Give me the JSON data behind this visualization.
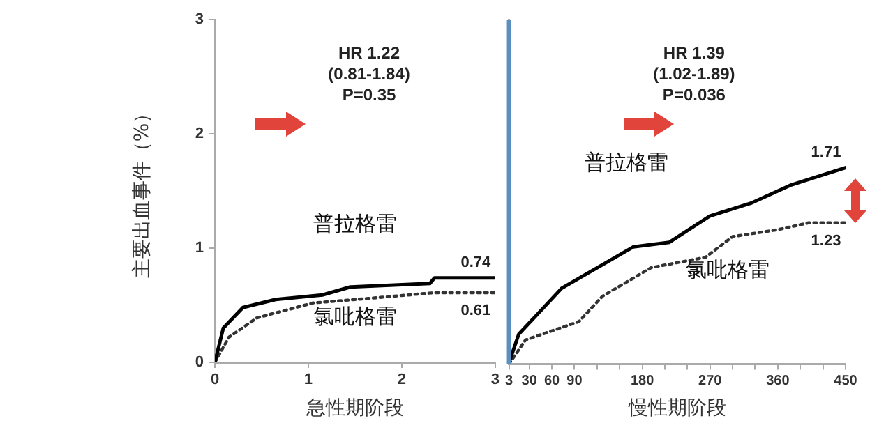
{
  "chart_data": [
    {
      "type": "line",
      "xlabel": "急性期阶段",
      "ylabel": "主要出血事件（%）",
      "xlim": [
        0,
        3
      ],
      "xticks": [
        0,
        1,
        2,
        3
      ],
      "ylim": [
        0,
        3
      ],
      "yticks": [
        0,
        1,
        2,
        3
      ],
      "grid": false,
      "legend": false,
      "marker": "none",
      "annotations": [
        "HR 1.22",
        "(0.81-1.84)",
        "P=0.35"
      ],
      "series": [
        {
          "name": "普拉格雷",
          "color": "#000000",
          "line_style": "solid",
          "x": [
            0,
            0.09,
            0.3,
            0.65,
            1.15,
            1.45,
            2.3,
            2.35,
            3
          ],
          "values": [
            0,
            0.3,
            0.48,
            0.55,
            0.59,
            0.66,
            0.69,
            0.74,
            0.74
          ],
          "value_labels": [
            null,
            null,
            null,
            null,
            null,
            null,
            null,
            null,
            "0.74"
          ]
        },
        {
          "name": "氯吡格雷",
          "color": "#333333",
          "line_style": "dotted",
          "x": [
            0,
            0.15,
            0.45,
            1.05,
            1.65,
            2.35,
            3
          ],
          "values": [
            0,
            0.22,
            0.39,
            0.52,
            0.56,
            0.61,
            0.61
          ],
          "value_labels": [
            null,
            null,
            null,
            null,
            null,
            null,
            "0.61"
          ]
        }
      ]
    },
    {
      "type": "line",
      "xlabel": "慢性期阶段",
      "xlim": [
        3,
        450
      ],
      "xticks": [
        3,
        30,
        60,
        90,
        {
          "value": 120,
          "label": null
        },
        {
          "value": 150,
          "label": null
        },
        180,
        {
          "value": 210,
          "label": null
        },
        {
          "value": 240,
          "label": null
        },
        270,
        {
          "value": 300,
          "label": null
        },
        {
          "value": 330,
          "label": null
        },
        360,
        {
          "value": 390,
          "label": null
        },
        {
          "value": 420,
          "label": null
        },
        450
      ],
      "ylim": [
        0,
        3
      ],
      "tick_labels": "x",
      "grid": false,
      "legend": false,
      "marker": "none",
      "ref_lines": [
        {
          "axis": "x",
          "value": 3,
          "color": "#5b8fc0"
        }
      ],
      "annotations": [
        "HR 1.39",
        "(1.02-1.89)",
        "P=0.036"
      ],
      "series": [
        {
          "name": "普拉格雷",
          "color": "#000000",
          "line_style": "solid",
          "x": [
            3,
            16,
            73,
            168,
            216,
            270,
            324,
            378,
            450
          ],
          "values": [
            0.01,
            0.26,
            0.66,
            1.02,
            1.06,
            1.29,
            1.4,
            1.56,
            1.71
          ],
          "value_labels": [
            null,
            null,
            null,
            null,
            null,
            null,
            null,
            null,
            "1.71"
          ]
        },
        {
          "name": "氯吡格雷",
          "color": "#333333",
          "line_style": "dotted",
          "x": [
            3,
            25,
            96,
            127,
            192,
            264,
            300,
            360,
            401,
            450
          ],
          "values": [
            0,
            0.21,
            0.37,
            0.59,
            0.84,
            0.93,
            1.11,
            1.17,
            1.23,
            1.23
          ],
          "value_labels": [
            null,
            null,
            null,
            null,
            null,
            null,
            null,
            null,
            null,
            "1.23"
          ]
        }
      ]
    }
  ]
}
